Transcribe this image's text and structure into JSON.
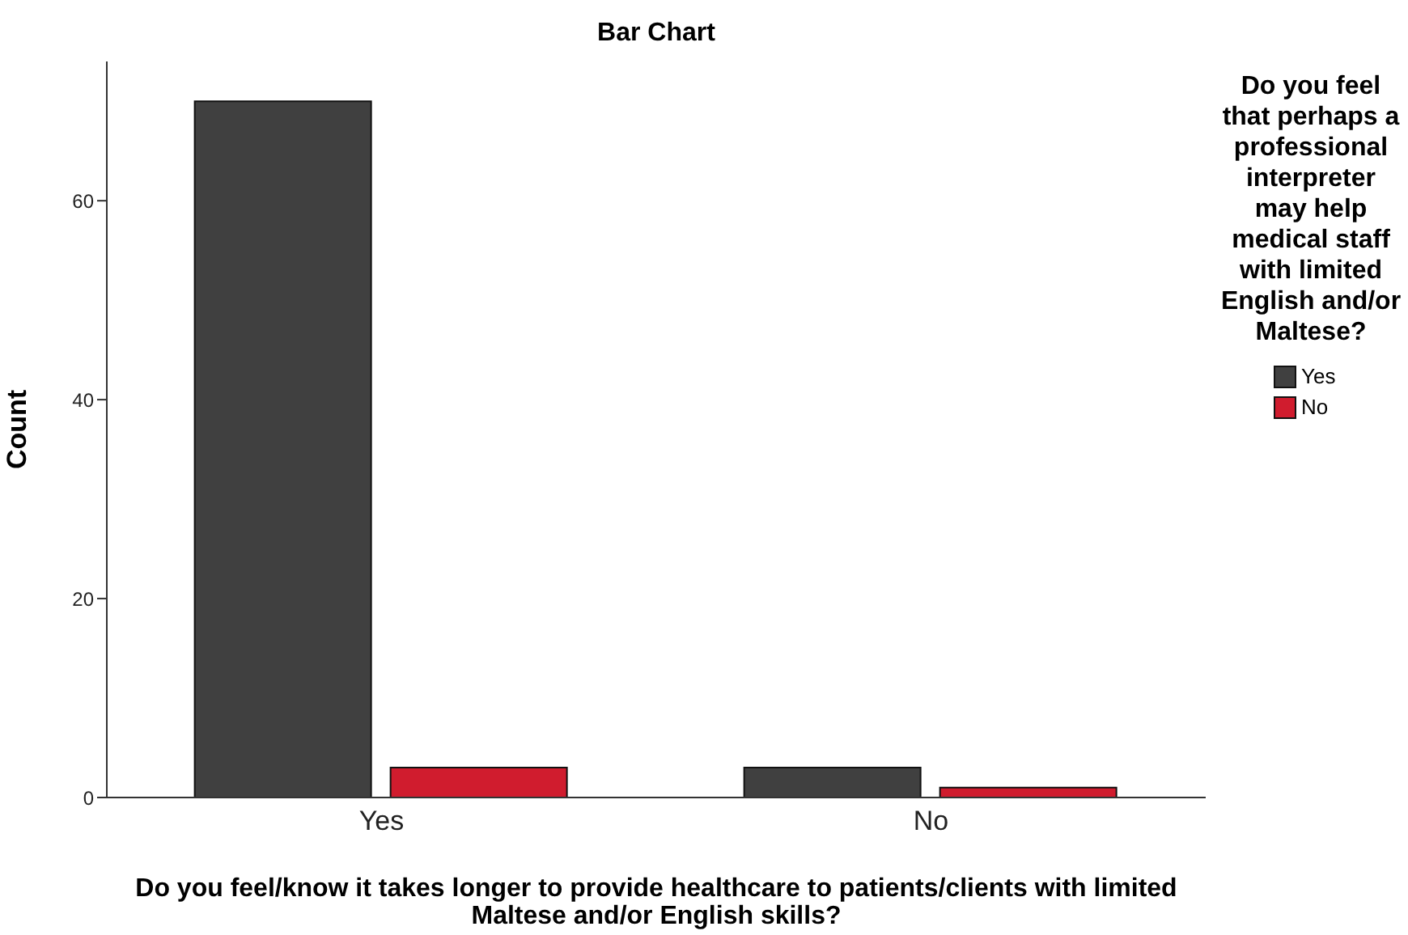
{
  "chart_data": {
    "type": "bar",
    "title": "Bar Chart",
    "xlabel": "Do you feel/know it takes longer to provide healthcare to patients/clients with limited Maltese and/or English skills?",
    "ylabel": "Count",
    "legend_title": "Do you feel that perhaps a professional interpreter may help medical staff with limited English and/or Maltese?",
    "categories": [
      "Yes",
      "No"
    ],
    "series": [
      {
        "name": "Yes",
        "color": "#404040",
        "values": [
          70,
          3
        ]
      },
      {
        "name": "No",
        "color": "#d01c2e",
        "values": [
          3,
          1
        ]
      }
    ],
    "ylim": [
      0,
      74
    ],
    "yticks": [
      0,
      20,
      40,
      60
    ],
    "grid": false,
    "legend": "top right"
  }
}
